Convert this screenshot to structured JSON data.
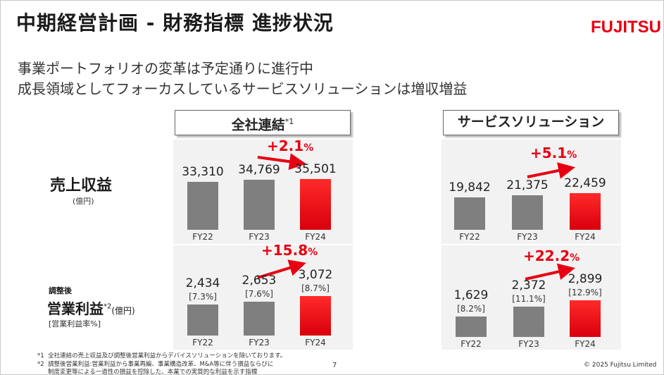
{
  "header": {
    "title": "中期経営計画 - 財務指標 進捗状況",
    "logo": "FUJITSU",
    "lead_line1": "事業ポートフォリオの変革は予定通りに進行中",
    "lead_line2": "成長領域としてフォーカスしているサービスソリューションは増収増益"
  },
  "sections": {
    "consolidated": {
      "label": "全社連結",
      "note": "*1"
    },
    "service": {
      "label": "サービスソリューション"
    }
  },
  "rows": {
    "revenue": {
      "label": "売上収益",
      "unit": "(億円)"
    },
    "profit": {
      "prefix": "調整後",
      "label": "営業利益",
      "note": "*2",
      "unit": "(億円)",
      "sub": "[営業利益率%]"
    }
  },
  "growth": {
    "consolidated_revenue": {
      "num": "+2.1",
      "unit": "%"
    },
    "service_revenue": {
      "num": "+5.1",
      "unit": "%"
    },
    "consolidated_profit": {
      "num": "+15.8",
      "unit": "%"
    },
    "service_profit": {
      "num": "+22.2",
      "unit": "%"
    }
  },
  "chart_data": [
    {
      "type": "bar",
      "title": "全社連結 売上収益",
      "categories": [
        "FY22",
        "FY23",
        "FY24"
      ],
      "values": [
        33310,
        34769,
        35501
      ],
      "labels": [
        "33,310",
        "34,769",
        "35,501"
      ],
      "colors": [
        "#7f7f7f",
        "#7f7f7f",
        "#e60012"
      ]
    },
    {
      "type": "bar",
      "title": "サービスソリューション 売上収益",
      "categories": [
        "FY22",
        "FY23",
        "FY24"
      ],
      "values": [
        19842,
        21375,
        22459
      ],
      "labels": [
        "19,842",
        "21,375",
        "22,459"
      ],
      "colors": [
        "#7f7f7f",
        "#7f7f7f",
        "#e60012"
      ]
    },
    {
      "type": "bar",
      "title": "全社連結 調整後営業利益",
      "categories": [
        "FY22",
        "FY23",
        "FY24"
      ],
      "values": [
        2434,
        2653,
        3072
      ],
      "labels": [
        "2,434",
        "2,653",
        "3,072"
      ],
      "margins": [
        "[7.3%]",
        "[7.6%]",
        "[8.7%]"
      ],
      "colors": [
        "#7f7f7f",
        "#7f7f7f",
        "#e60012"
      ]
    },
    {
      "type": "bar",
      "title": "サービスソリューション 調整後営業利益",
      "categories": [
        "FY22",
        "FY23",
        "FY24"
      ],
      "values": [
        1629,
        2372,
        2899
      ],
      "labels": [
        "1,629",
        "2,372",
        "2,899"
      ],
      "margins": [
        "[8.2%]",
        "[11.1%]",
        "[12.9%]"
      ],
      "colors": [
        "#7f7f7f",
        "#7f7f7f",
        "#e60012"
      ]
    }
  ],
  "footer": {
    "note1_mark": "*1",
    "note1": "全社連結の売上収益及び調整後営業利益からデバイスソリューションを除いております。",
    "note2_mark": "*2",
    "note2_line1": "調整後営業利益:営業利益から事業再編、事業構造改革、M&A等に伴う損益ならびに",
    "note2_line2": "制度変更等による一過性の損益を控除した、本業での実質的な利益を示す指標",
    "page": "7",
    "copyright": "© 2025 Fujitsu Limited"
  },
  "colors": {
    "accent": "#e60012",
    "bar_gray": "#7f7f7f",
    "plot_bg": "#f2f2f2"
  }
}
